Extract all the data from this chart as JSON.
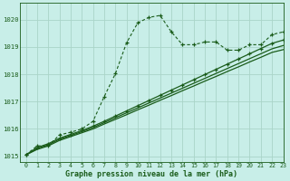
{
  "title": "Graphe pression niveau de la mer (hPa)",
  "bg_color": "#c8eee8",
  "grid_color": "#aad4c8",
  "line_color": "#1a5c1a",
  "xlim": [
    -0.5,
    23
  ],
  "ylim": [
    1014.8,
    1020.6
  ],
  "yticks": [
    1015,
    1016,
    1017,
    1018,
    1019,
    1020
  ],
  "xticks": [
    0,
    1,
    2,
    3,
    4,
    5,
    6,
    7,
    8,
    9,
    10,
    11,
    12,
    13,
    14,
    15,
    16,
    17,
    18,
    19,
    20,
    21,
    22,
    23
  ],
  "s1_x": [
    0,
    1,
    2,
    3,
    4,
    5,
    6,
    7,
    8,
    9,
    10,
    11,
    12,
    13,
    14,
    15,
    16,
    17,
    18,
    19,
    20,
    21,
    22,
    23
  ],
  "s1_y": [
    1015.05,
    1015.38,
    1015.38,
    1015.78,
    1015.88,
    1016.0,
    1016.28,
    1017.18,
    1018.02,
    1019.15,
    1019.88,
    1020.08,
    1020.15,
    1019.55,
    1019.08,
    1019.08,
    1019.18,
    1019.18,
    1018.88,
    1018.88,
    1019.08,
    1019.08,
    1019.45,
    1019.55
  ],
  "s2_x": [
    0,
    1,
    2,
    3,
    4,
    5,
    6,
    7,
    8,
    9,
    10,
    11,
    12,
    13,
    14,
    15,
    16,
    17,
    18,
    19,
    20,
    21,
    22,
    23
  ],
  "s2_y": [
    1015.05,
    1015.25,
    1015.38,
    1015.58,
    1015.72,
    1015.86,
    1016.0,
    1016.18,
    1016.35,
    1016.52,
    1016.7,
    1016.87,
    1017.05,
    1017.22,
    1017.4,
    1017.57,
    1017.75,
    1017.92,
    1018.1,
    1018.27,
    1018.45,
    1018.62,
    1018.8,
    1018.9
  ],
  "s3_x": [
    0,
    1,
    2,
    3,
    4,
    5,
    6,
    7,
    8,
    9,
    10,
    11,
    12,
    13,
    14,
    15,
    16,
    17,
    18,
    19,
    20,
    21,
    22,
    23
  ],
  "s3_y": [
    1015.05,
    1015.28,
    1015.42,
    1015.62,
    1015.76,
    1015.9,
    1016.05,
    1016.23,
    1016.41,
    1016.59,
    1016.77,
    1016.95,
    1017.13,
    1017.31,
    1017.49,
    1017.67,
    1017.85,
    1018.03,
    1018.21,
    1018.39,
    1018.57,
    1018.75,
    1018.93,
    1019.05
  ],
  "s4_x": [
    0,
    1,
    2,
    3,
    4,
    5,
    6,
    7,
    8,
    9,
    10,
    11,
    12,
    13,
    14,
    15,
    16,
    17,
    18,
    19,
    20,
    21,
    22,
    23
  ],
  "s4_y": [
    1015.05,
    1015.32,
    1015.46,
    1015.66,
    1015.8,
    1015.94,
    1016.1,
    1016.28,
    1016.47,
    1016.66,
    1016.85,
    1017.04,
    1017.23,
    1017.42,
    1017.61,
    1017.8,
    1017.99,
    1018.18,
    1018.37,
    1018.56,
    1018.75,
    1018.94,
    1019.13,
    1019.25
  ]
}
